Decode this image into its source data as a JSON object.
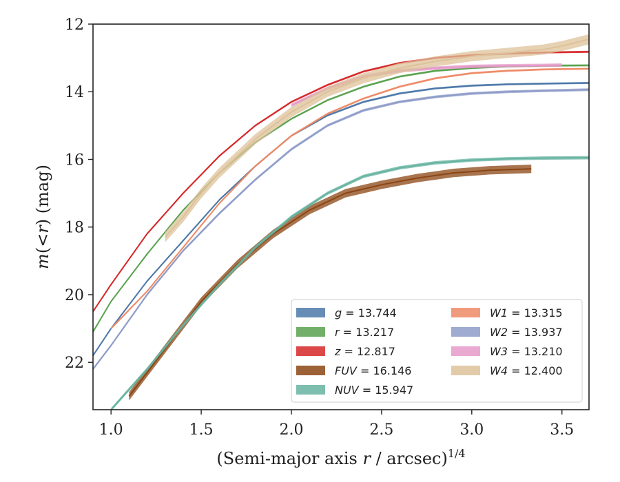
{
  "chart_data": {
    "type": "line",
    "title": "",
    "xlabel_main": "(Semi-major axis ",
    "xlabel_var": "r",
    "xlabel_tail": " / arcsec)",
    "xlabel_sup": "1/4",
    "ylabel_var_m": "m",
    "ylabel_mid": "(<",
    "ylabel_var_r": "r",
    "ylabel_tail": ") (mag)",
    "xlim": [
      0.9,
      3.65
    ],
    "ylim": [
      23.4,
      12.0
    ],
    "y_inverted": true,
    "grid": false,
    "legend_position": "lower-right",
    "x_ticks": [
      1.0,
      1.5,
      2.0,
      2.5,
      3.0,
      3.5
    ],
    "x_tick_labels": [
      "1.0",
      "1.5",
      "2.0",
      "2.5",
      "3.0",
      "3.5"
    ],
    "y_ticks": [
      12,
      14,
      16,
      18,
      20,
      22
    ],
    "y_tick_labels": [
      "12",
      "14",
      "16",
      "18",
      "20",
      "22"
    ],
    "series": [
      {
        "band": "g",
        "value": "13.744",
        "color": "#4c78a8",
        "band_width": 0.06,
        "x": [
          0.9,
          1.0,
          1.2,
          1.4,
          1.6,
          1.8,
          2.0,
          2.2,
          2.4,
          2.6,
          2.8,
          3.0,
          3.2,
          3.4,
          3.65
        ],
        "y": [
          21.8,
          21.0,
          19.6,
          18.4,
          17.2,
          16.2,
          15.3,
          14.7,
          14.3,
          14.05,
          13.9,
          13.82,
          13.78,
          13.76,
          13.74
        ]
      },
      {
        "band": "r",
        "value": "13.217",
        "color": "#59a14f",
        "band_width": 0.06,
        "x": [
          0.9,
          1.0,
          1.2,
          1.4,
          1.6,
          1.8,
          2.0,
          2.2,
          2.4,
          2.6,
          2.8,
          3.0,
          3.2,
          3.4,
          3.65
        ],
        "y": [
          21.1,
          20.2,
          18.8,
          17.5,
          16.4,
          15.5,
          14.8,
          14.25,
          13.85,
          13.55,
          13.38,
          13.3,
          13.25,
          13.23,
          13.22
        ]
      },
      {
        "band": "z",
        "value": "12.817",
        "color": "#d62728",
        "band_width": 0.06,
        "x": [
          0.9,
          1.0,
          1.2,
          1.4,
          1.6,
          1.8,
          2.0,
          2.2,
          2.4,
          2.6,
          2.8,
          3.0,
          3.2,
          3.4,
          3.65
        ],
        "y": [
          20.5,
          19.7,
          18.2,
          17.0,
          15.9,
          15.0,
          14.3,
          13.8,
          13.4,
          13.15,
          13.0,
          12.92,
          12.87,
          12.84,
          12.82
        ]
      },
      {
        "band": "FUV",
        "value": "16.146",
        "color": "#8b4513",
        "band_width": 0.25,
        "x": [
          1.1,
          1.3,
          1.5,
          1.7,
          1.9,
          2.1,
          2.3,
          2.5,
          2.7,
          2.9,
          3.1,
          3.33
        ],
        "y": [
          23.0,
          21.6,
          20.2,
          19.1,
          18.2,
          17.5,
          17.0,
          16.75,
          16.55,
          16.4,
          16.32,
          16.28
        ]
      },
      {
        "band": "NUV",
        "value": "15.947",
        "color": "#66b3a0",
        "band_width": 0.1,
        "x": [
          1.0,
          1.2,
          1.4,
          1.6,
          1.8,
          2.0,
          2.2,
          2.4,
          2.6,
          2.8,
          3.0,
          3.2,
          3.4,
          3.65
        ],
        "y": [
          23.4,
          22.2,
          20.9,
          19.7,
          18.6,
          17.7,
          17.0,
          16.5,
          16.25,
          16.1,
          16.02,
          15.98,
          15.96,
          15.95
        ]
      },
      {
        "band": "W1",
        "value": "13.315",
        "color": "#ee8a66",
        "band_width": 0.06,
        "x": [
          1.0,
          1.2,
          1.4,
          1.6,
          1.8,
          2.0,
          2.2,
          2.4,
          2.6,
          2.8,
          3.0,
          3.2,
          3.4,
          3.65
        ],
        "y": [
          21.0,
          19.9,
          18.6,
          17.3,
          16.2,
          15.3,
          14.65,
          14.2,
          13.85,
          13.6,
          13.45,
          13.38,
          13.34,
          13.32
        ]
      },
      {
        "band": "W2",
        "value": "13.937",
        "color": "#8e9cc9",
        "band_width": 0.08,
        "x": [
          0.9,
          1.0,
          1.2,
          1.4,
          1.6,
          1.8,
          2.0,
          2.2,
          2.4,
          2.6,
          2.8,
          3.0,
          3.2,
          3.4,
          3.65
        ],
        "y": [
          22.2,
          21.5,
          20.0,
          18.7,
          17.6,
          16.6,
          15.7,
          15.0,
          14.55,
          14.3,
          14.15,
          14.05,
          14.0,
          13.97,
          13.94
        ]
      },
      {
        "band": "W3",
        "value": "13.210",
        "color": "#e59ac9",
        "band_width": 0.1,
        "x": [
          2.0,
          2.2,
          2.4,
          2.6,
          2.8,
          3.0,
          3.2,
          3.4,
          3.5
        ],
        "y": [
          14.4,
          13.9,
          13.55,
          13.38,
          13.3,
          13.25,
          13.23,
          13.22,
          13.21
        ]
      },
      {
        "band": "W4",
        "value": "12.400",
        "color": "#ddc299",
        "band_width": 0.3,
        "x": [
          1.3,
          1.4,
          1.5,
          1.6,
          1.7,
          1.8,
          1.9,
          2.0,
          2.2,
          2.4,
          2.6,
          2.8,
          3.0,
          3.2,
          3.4,
          3.5,
          3.65
        ],
        "y": [
          18.3,
          17.7,
          17.0,
          16.4,
          15.9,
          15.4,
          15.0,
          14.6,
          14.0,
          13.6,
          13.3,
          13.1,
          12.95,
          12.85,
          12.75,
          12.65,
          12.45
        ]
      }
    ]
  }
}
